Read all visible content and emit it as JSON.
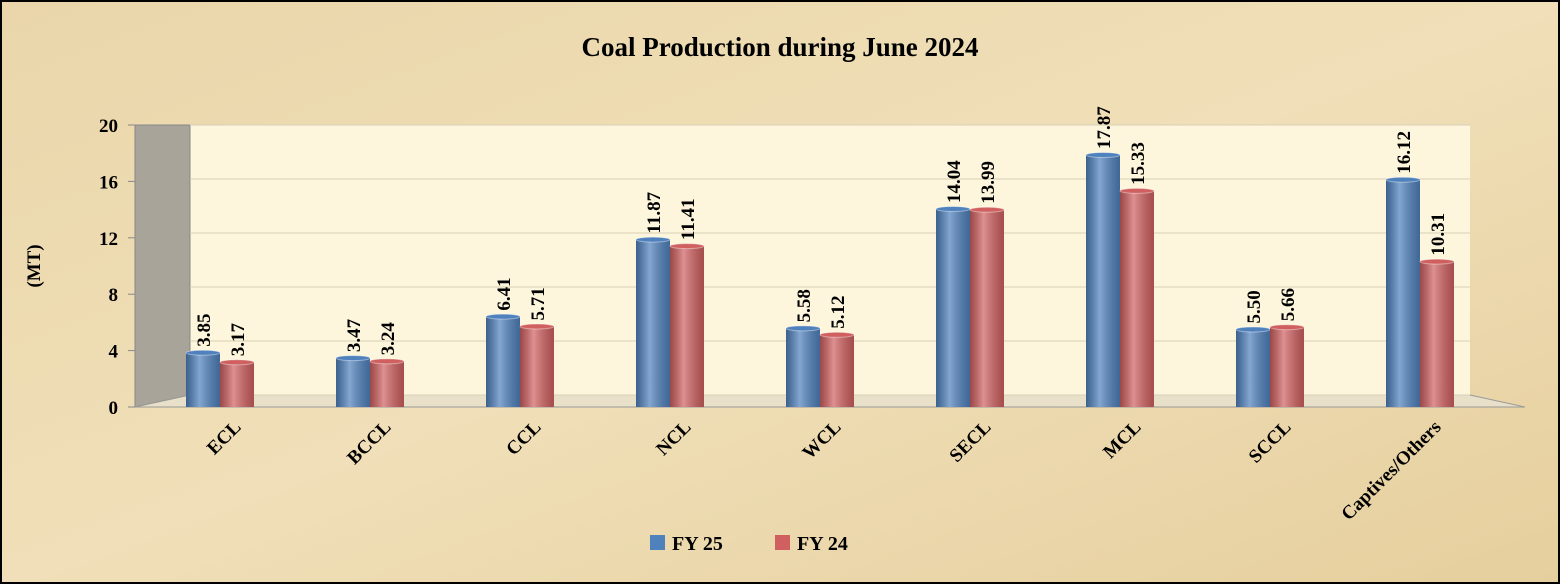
{
  "chart_data": {
    "type": "bar",
    "title": "Coal Production during June 2024",
    "y_label": "(MT)",
    "categories": [
      "ECL",
      "BCCL",
      "CCL",
      "NCL",
      "WCL",
      "SECL",
      "MCL",
      "SCCL",
      "Captives/Others"
    ],
    "series": [
      {
        "name": "FY 25",
        "color": "#4f81bd",
        "values": [
          3.85,
          3.47,
          6.41,
          11.87,
          5.58,
          14.04,
          17.87,
          5.5,
          16.12
        ],
        "value_labels": [
          "3.85",
          "3.47",
          "6.41",
          "11.87",
          "5.58",
          "14.04",
          "17.87",
          "5.50",
          "16.12"
        ]
      },
      {
        "name": "FY 24",
        "color": "#d06060",
        "values": [
          3.17,
          3.24,
          5.71,
          11.41,
          5.12,
          13.99,
          15.33,
          5.66,
          10.31
        ],
        "value_labels": [
          "3.17",
          "3.24",
          "5.71",
          "11.41",
          "5.12",
          "13.99",
          "15.33",
          "5.66",
          "10.31"
        ]
      }
    ],
    "ylim": [
      0,
      20
    ],
    "yticks": [
      0,
      4,
      8,
      12,
      16,
      20
    ],
    "grid": true,
    "legend": "bottom"
  }
}
